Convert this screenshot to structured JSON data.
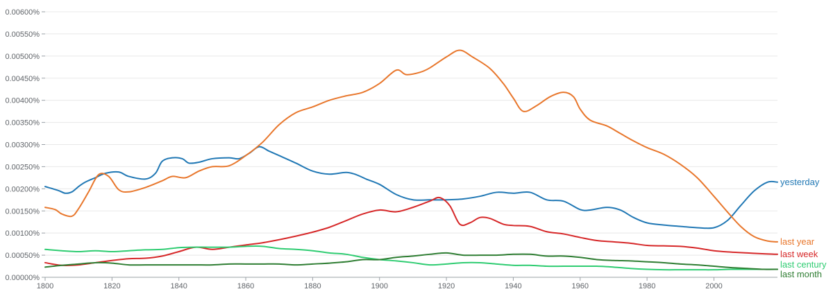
{
  "chart_data": {
    "type": "line",
    "title": "",
    "xlabel": "",
    "ylabel": "",
    "xlim": [
      1800,
      2019
    ],
    "ylim": [
      0,
      0.006
    ],
    "grid": "horizontal",
    "legend": "right end of lines",
    "x_ticks": [
      1800,
      1820,
      1840,
      1860,
      1880,
      1900,
      1920,
      1940,
      1960,
      1980,
      2000
    ],
    "x_tick_labels": [
      "1800",
      "1820",
      "1840",
      "1860",
      "1880",
      "1900",
      "1920",
      "1940",
      "1960",
      "1980",
      "2000"
    ],
    "y_ticks": [
      0,
      0.0005,
      0.001,
      0.0015,
      0.002,
      0.0025,
      0.003,
      0.0035,
      0.004,
      0.0045,
      0.005,
      0.0055,
      0.006
    ],
    "y_tick_labels": [
      "0.00000%",
      "0.00050%",
      "0.00100%",
      "0.00150%",
      "0.00200%",
      "0.00250%",
      "0.00300%",
      "0.00350%",
      "0.00400%",
      "0.00450%",
      "0.00500%",
      "0.00550%",
      "0.00600%"
    ],
    "series": [
      {
        "name": "yesterday",
        "color": "#1f77b4",
        "points": [
          [
            1800,
            0.00205
          ],
          [
            1804,
            0.00196
          ],
          [
            1806,
            0.0019
          ],
          [
            1808,
            0.00193
          ],
          [
            1810,
            0.00205
          ],
          [
            1812,
            0.00215
          ],
          [
            1815,
            0.00225
          ],
          [
            1818,
            0.00235
          ],
          [
            1822,
            0.00238
          ],
          [
            1825,
            0.00228
          ],
          [
            1830,
            0.00222
          ],
          [
            1833,
            0.00235
          ],
          [
            1835,
            0.00262
          ],
          [
            1838,
            0.0027
          ],
          [
            1841,
            0.00268
          ],
          [
            1843,
            0.00258
          ],
          [
            1846,
            0.0026
          ],
          [
            1850,
            0.00268
          ],
          [
            1855,
            0.0027
          ],
          [
            1858,
            0.00268
          ],
          [
            1861,
            0.0028
          ],
          [
            1864,
            0.00295
          ],
          [
            1867,
            0.00285
          ],
          [
            1870,
            0.00275
          ],
          [
            1875,
            0.00258
          ],
          [
            1880,
            0.0024
          ],
          [
            1885,
            0.00233
          ],
          [
            1890,
            0.00237
          ],
          [
            1893,
            0.00232
          ],
          [
            1896,
            0.00222
          ],
          [
            1900,
            0.0021
          ],
          [
            1905,
            0.00187
          ],
          [
            1910,
            0.00175
          ],
          [
            1915,
            0.00175
          ],
          [
            1920,
            0.00175
          ],
          [
            1925,
            0.00177
          ],
          [
            1930,
            0.00183
          ],
          [
            1935,
            0.00192
          ],
          [
            1940,
            0.0019
          ],
          [
            1945,
            0.00192
          ],
          [
            1950,
            0.00175
          ],
          [
            1955,
            0.00172
          ],
          [
            1960,
            0.00153
          ],
          [
            1963,
            0.00152
          ],
          [
            1968,
            0.00158
          ],
          [
            1972,
            0.00152
          ],
          [
            1976,
            0.00135
          ],
          [
            1980,
            0.00123
          ],
          [
            1985,
            0.00118
          ],
          [
            1990,
            0.00115
          ],
          [
            1995,
            0.00112
          ],
          [
            2000,
            0.00112
          ],
          [
            2004,
            0.00128
          ],
          [
            2008,
            0.00162
          ],
          [
            2012,
            0.00195
          ],
          [
            2016,
            0.00215
          ],
          [
            2019,
            0.00215
          ]
        ]
      },
      {
        "name": "last year",
        "color": "#e8762b",
        "points": [
          [
            1800,
            0.00158
          ],
          [
            1803,
            0.00153
          ],
          [
            1805,
            0.00143
          ],
          [
            1808,
            0.00138
          ],
          [
            1810,
            0.00155
          ],
          [
            1813,
            0.00193
          ],
          [
            1816,
            0.00232
          ],
          [
            1819,
            0.00228
          ],
          [
            1822,
            0.00198
          ],
          [
            1825,
            0.00193
          ],
          [
            1830,
            0.00203
          ],
          [
            1835,
            0.00218
          ],
          [
            1838,
            0.00228
          ],
          [
            1842,
            0.00225
          ],
          [
            1846,
            0.0024
          ],
          [
            1850,
            0.0025
          ],
          [
            1855,
            0.00252
          ],
          [
            1860,
            0.00275
          ],
          [
            1865,
            0.00305
          ],
          [
            1870,
            0.00345
          ],
          [
            1875,
            0.00372
          ],
          [
            1880,
            0.00385
          ],
          [
            1885,
            0.004
          ],
          [
            1890,
            0.0041
          ],
          [
            1895,
            0.00418
          ],
          [
            1900,
            0.00438
          ],
          [
            1905,
            0.00468
          ],
          [
            1908,
            0.00458
          ],
          [
            1912,
            0.00463
          ],
          [
            1915,
            0.00473
          ],
          [
            1920,
            0.00498
          ],
          [
            1924,
            0.00513
          ],
          [
            1928,
            0.00497
          ],
          [
            1933,
            0.00472
          ],
          [
            1937,
            0.00438
          ],
          [
            1940,
            0.00405
          ],
          [
            1943,
            0.00375
          ],
          [
            1947,
            0.00388
          ],
          [
            1951,
            0.00408
          ],
          [
            1955,
            0.00418
          ],
          [
            1958,
            0.00408
          ],
          [
            1960,
            0.0038
          ],
          [
            1963,
            0.00355
          ],
          [
            1968,
            0.00342
          ],
          [
            1972,
            0.00325
          ],
          [
            1976,
            0.00308
          ],
          [
            1980,
            0.00293
          ],
          [
            1985,
            0.00278
          ],
          [
            1990,
            0.00255
          ],
          [
            1995,
            0.00225
          ],
          [
            2000,
            0.00183
          ],
          [
            2004,
            0.00148
          ],
          [
            2008,
            0.00115
          ],
          [
            2012,
            0.00092
          ],
          [
            2016,
            0.00082
          ],
          [
            2019,
            0.0008
          ]
        ]
      },
      {
        "name": "last week",
        "color": "#d62728",
        "points": [
          [
            1800,
            0.00033
          ],
          [
            1805,
            0.00027
          ],
          [
            1810,
            0.00028
          ],
          [
            1815,
            0.00033
          ],
          [
            1820,
            0.00038
          ],
          [
            1825,
            0.00042
          ],
          [
            1830,
            0.00043
          ],
          [
            1835,
            0.00048
          ],
          [
            1840,
            0.00058
          ],
          [
            1845,
            0.00068
          ],
          [
            1850,
            0.00063
          ],
          [
            1855,
            0.00068
          ],
          [
            1860,
            0.00073
          ],
          [
            1865,
            0.00078
          ],
          [
            1870,
            0.00085
          ],
          [
            1875,
            0.00093
          ],
          [
            1880,
            0.00102
          ],
          [
            1885,
            0.00113
          ],
          [
            1890,
            0.00128
          ],
          [
            1895,
            0.00143
          ],
          [
            1900,
            0.00152
          ],
          [
            1905,
            0.00148
          ],
          [
            1910,
            0.00158
          ],
          [
            1915,
            0.00172
          ],
          [
            1918,
            0.0018
          ],
          [
            1921,
            0.00162
          ],
          [
            1924,
            0.0012
          ],
          [
            1927,
            0.00123
          ],
          [
            1930,
            0.00135
          ],
          [
            1933,
            0.00133
          ],
          [
            1937,
            0.0012
          ],
          [
            1940,
            0.00117
          ],
          [
            1945,
            0.00115
          ],
          [
            1950,
            0.00103
          ],
          [
            1955,
            0.00098
          ],
          [
            1960,
            0.0009
          ],
          [
            1965,
            0.00083
          ],
          [
            1970,
            0.0008
          ],
          [
            1975,
            0.00077
          ],
          [
            1980,
            0.00072
          ],
          [
            1985,
            0.00071
          ],
          [
            1990,
            0.0007
          ],
          [
            1995,
            0.00066
          ],
          [
            2000,
            0.0006
          ],
          [
            2005,
            0.00057
          ],
          [
            2010,
            0.00055
          ],
          [
            2015,
            0.00053
          ],
          [
            2019,
            0.00052
          ]
        ]
      },
      {
        "name": "last century",
        "color": "#2ecc71",
        "points": [
          [
            1800,
            0.00063
          ],
          [
            1805,
            0.0006
          ],
          [
            1810,
            0.00058
          ],
          [
            1815,
            0.0006
          ],
          [
            1820,
            0.00058
          ],
          [
            1825,
            0.0006
          ],
          [
            1830,
            0.00062
          ],
          [
            1835,
            0.00063
          ],
          [
            1840,
            0.00067
          ],
          [
            1845,
            0.00068
          ],
          [
            1850,
            0.00068
          ],
          [
            1855,
            0.00068
          ],
          [
            1860,
            0.0007
          ],
          [
            1865,
            0.0007
          ],
          [
            1870,
            0.00065
          ],
          [
            1875,
            0.00063
          ],
          [
            1880,
            0.0006
          ],
          [
            1885,
            0.00055
          ],
          [
            1890,
            0.00052
          ],
          [
            1895,
            0.00045
          ],
          [
            1900,
            0.0004
          ],
          [
            1905,
            0.00037
          ],
          [
            1910,
            0.00033
          ],
          [
            1915,
            0.00028
          ],
          [
            1920,
            0.0003
          ],
          [
            1925,
            0.00033
          ],
          [
            1930,
            0.00033
          ],
          [
            1935,
            0.0003
          ],
          [
            1940,
            0.00027
          ],
          [
            1945,
            0.00027
          ],
          [
            1950,
            0.00025
          ],
          [
            1955,
            0.00025
          ],
          [
            1960,
            0.00025
          ],
          [
            1965,
            0.00025
          ],
          [
            1970,
            0.00023
          ],
          [
            1975,
            0.0002
          ],
          [
            1980,
            0.00018
          ],
          [
            1985,
            0.00017
          ],
          [
            1990,
            0.00017
          ],
          [
            1995,
            0.00017
          ],
          [
            2000,
            0.00017
          ],
          [
            2005,
            0.00018
          ],
          [
            2010,
            0.00018
          ],
          [
            2015,
            0.00018
          ],
          [
            2019,
            0.00018
          ]
        ]
      },
      {
        "name": "last month",
        "color": "#2e7d32",
        "points": [
          [
            1800,
            0.00023
          ],
          [
            1805,
            0.00027
          ],
          [
            1810,
            0.0003
          ],
          [
            1815,
            0.00033
          ],
          [
            1820,
            0.00032
          ],
          [
            1825,
            0.00028
          ],
          [
            1830,
            0.00028
          ],
          [
            1835,
            0.00028
          ],
          [
            1840,
            0.00028
          ],
          [
            1845,
            0.00028
          ],
          [
            1850,
            0.00028
          ],
          [
            1855,
            0.0003
          ],
          [
            1860,
            0.0003
          ],
          [
            1865,
            0.0003
          ],
          [
            1870,
            0.0003
          ],
          [
            1875,
            0.00028
          ],
          [
            1880,
            0.0003
          ],
          [
            1885,
            0.00032
          ],
          [
            1890,
            0.00035
          ],
          [
            1895,
            0.0004
          ],
          [
            1900,
            0.0004
          ],
          [
            1905,
            0.00045
          ],
          [
            1910,
            0.00048
          ],
          [
            1915,
            0.00052
          ],
          [
            1920,
            0.00055
          ],
          [
            1925,
            0.0005
          ],
          [
            1930,
            0.0005
          ],
          [
            1935,
            0.0005
          ],
          [
            1940,
            0.00052
          ],
          [
            1945,
            0.00052
          ],
          [
            1950,
            0.00048
          ],
          [
            1955,
            0.00048
          ],
          [
            1960,
            0.00045
          ],
          [
            1965,
            0.0004
          ],
          [
            1970,
            0.00038
          ],
          [
            1975,
            0.00037
          ],
          [
            1980,
            0.00035
          ],
          [
            1985,
            0.00033
          ],
          [
            1990,
            0.0003
          ],
          [
            1995,
            0.00028
          ],
          [
            2000,
            0.00025
          ],
          [
            2005,
            0.00022
          ],
          [
            2010,
            0.0002
          ],
          [
            2015,
            0.00018
          ],
          [
            2019,
            0.00018
          ]
        ]
      }
    ]
  }
}
